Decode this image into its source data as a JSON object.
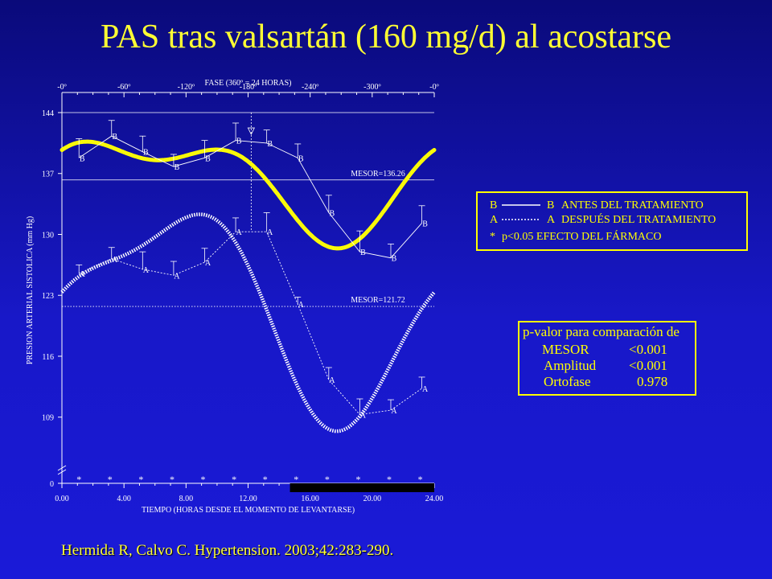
{
  "slide": {
    "title": "PAS tras valsartán (160 mg/d) al acostarse",
    "citation": "Hermida R, Calvo C. Hypertension. 2003;42:283-290."
  },
  "legend": {
    "items": [
      {
        "left": "B",
        "right": "B",
        "text": "ANTES DEL TRATAMIENTO",
        "style": "solid"
      },
      {
        "left": "A",
        "right": "A",
        "text": "DESPUÉS DEL TRATAMIENTO",
        "style": "dotted"
      },
      {
        "left": "*",
        "right": "",
        "text": "p<0.05  EFECTO DEL FÁRMACO",
        "style": "none"
      }
    ]
  },
  "pvalues": {
    "header": "p-valor para comparación de",
    "rows": [
      {
        "label": "MESOR",
        "value": "<0.001"
      },
      {
        "label": "Amplitud",
        "value": "<0.001"
      },
      {
        "label": "Ortofase",
        "value": "0.978"
      }
    ]
  },
  "chart_data": {
    "type": "line",
    "xlabel": "TIEMPO (HORAS DESDE EL MOMENTO DE LEVANTARSE)",
    "ylabel": "PRESION ARTERIAL SISTOLICA (mm Hg)",
    "top_axis_label": "FASE  (360º = 24 HORAS)",
    "x_ticks": [
      "0.00",
      "4.00",
      "8.00",
      "12.00",
      "16.00",
      "20.00",
      "24.00"
    ],
    "x_tick_values": [
      0,
      4,
      8,
      12,
      16,
      20,
      24
    ],
    "phase_ticks": [
      "-0º",
      "-60º",
      "-120º",
      "-180º",
      "-240º",
      "-300º",
      "-0º"
    ],
    "y_ticks": [
      "0",
      "109",
      "116",
      "123",
      "130",
      "137",
      "144"
    ],
    "y_tick_values": [
      109,
      116,
      123,
      130,
      137,
      144
    ],
    "xlim": [
      0,
      24
    ],
    "ylim": [
      105,
      144
    ],
    "y_axis_break": true,
    "mesor": [
      {
        "label": "MESOR=136.26",
        "value": 136.26,
        "series": "B"
      },
      {
        "label": "MESOR=121.72",
        "value": 121.72,
        "series": "A"
      }
    ],
    "orthophase_hours": 12.2,
    "series": [
      {
        "name": "B",
        "marker": "B",
        "color": "#ffff00",
        "x": [
          1.1,
          3.2,
          5.2,
          7.2,
          9.2,
          11.2,
          13.2,
          15.2,
          17.2,
          19.2,
          21.2,
          23.2
        ],
        "y": [
          138.8,
          141.3,
          139.5,
          137.8,
          138.8,
          140.8,
          140.5,
          138.8,
          132.5,
          128.0,
          127.3,
          131.3
        ],
        "err": [
          2.2,
          1.8,
          1.8,
          1.4,
          2.0,
          2.0,
          1.5,
          1.6,
          2.0,
          2.4,
          1.6,
          2.0
        ],
        "fit": {
          "mesor": 136.26,
          "c1": 0.66,
          "s1": 5.06,
          "c2": 2.78,
          "s2": -0.16
        }
      },
      {
        "name": "A",
        "marker": "A",
        "color": "#ffffff",
        "x": [
          1.1,
          3.2,
          5.2,
          7.2,
          9.2,
          11.2,
          13.2,
          15.2,
          17.2,
          19.2,
          21.2,
          23.2
        ],
        "y": [
          125.5,
          127.2,
          126.0,
          125.3,
          126.8,
          130.3,
          130.3,
          122.0,
          113.3,
          109.3,
          109.8,
          112.3
        ],
        "err": [
          1.0,
          1.3,
          2.0,
          1.6,
          1.6,
          1.6,
          2.2,
          0.8,
          1.4,
          1.8,
          1.2,
          1.3
        ],
        "fit": {
          "mesor": 121.72,
          "c1": -1.52,
          "s1": 11.12,
          "c2": 3.15,
          "s2": -1.64
        }
      }
    ],
    "significance_hours": [
      1.1,
      3.1,
      5.1,
      7.1,
      9.1,
      11.1,
      13.1,
      15.1,
      17.1,
      19.1,
      21.1,
      23.1
    ],
    "significance_marker": "*",
    "night_bar": [
      14.7,
      24
    ]
  }
}
